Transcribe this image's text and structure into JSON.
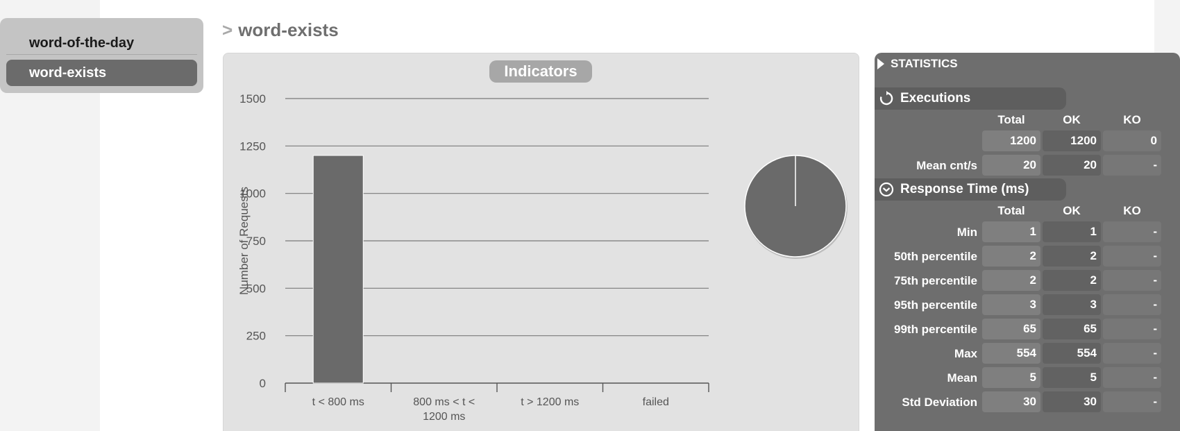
{
  "menu": {
    "items": [
      {
        "label": "word-of-the-day",
        "active": false
      },
      {
        "label": "word-exists",
        "active": true
      }
    ]
  },
  "page": {
    "title_prefix": ">",
    "title": "word-exists"
  },
  "indicators": {
    "title": "Indicators"
  },
  "chart_data": [
    {
      "type": "bar",
      "categories": [
        "t < 800 ms",
        "800 ms < t < 1200 ms",
        "t > 1200 ms",
        "failed"
      ],
      "category_lines": [
        [
          "t < 800 ms"
        ],
        [
          "800 ms < t <",
          "1200 ms"
        ],
        [
          "t > 1200 ms"
        ],
        [
          "failed"
        ]
      ],
      "values": [
        1200,
        0,
        0,
        0
      ],
      "title": "",
      "xlabel": "",
      "ylabel": "Number of Requests",
      "ylim": [
        0,
        1500
      ],
      "yticks": [
        0,
        250,
        500,
        750,
        1000,
        1250,
        1500
      ],
      "grid": true,
      "bar_color": "#6a6a6a"
    },
    {
      "type": "pie",
      "labels": [
        "t < 800 ms",
        "800 ms < t < 1200 ms",
        "t > 1200 ms",
        "failed"
      ],
      "values": [
        1200,
        0,
        0,
        0
      ],
      "color": "#6a6a6a"
    }
  ],
  "statistics": {
    "title": "STATISTICS",
    "executions": {
      "title": "Executions",
      "icon": "refresh-icon",
      "columns": [
        "Total",
        "OK",
        "KO"
      ],
      "rows": [
        {
          "label": "",
          "total": "1200",
          "ok": "1200",
          "ko": "0"
        },
        {
          "label": "Mean cnt/s",
          "total": "20",
          "ok": "20",
          "ko": "-"
        }
      ]
    },
    "response_time": {
      "title": "Response Time (ms)",
      "icon": "clock-icon",
      "columns": [
        "Total",
        "OK",
        "KO"
      ],
      "rows": [
        {
          "label": "Min",
          "total": "1",
          "ok": "1",
          "ko": "-"
        },
        {
          "label": "50th percentile",
          "total": "2",
          "ok": "2",
          "ko": "-"
        },
        {
          "label": "75th percentile",
          "total": "2",
          "ok": "2",
          "ko": "-"
        },
        {
          "label": "95th percentile",
          "total": "3",
          "ok": "3",
          "ko": "-"
        },
        {
          "label": "99th percentile",
          "total": "65",
          "ok": "65",
          "ko": "-"
        },
        {
          "label": "Max",
          "total": "554",
          "ok": "554",
          "ko": "-"
        },
        {
          "label": "Mean",
          "total": "5",
          "ok": "5",
          "ko": "-"
        },
        {
          "label": "Std Deviation",
          "total": "30",
          "ok": "30",
          "ko": "-"
        }
      ]
    }
  }
}
